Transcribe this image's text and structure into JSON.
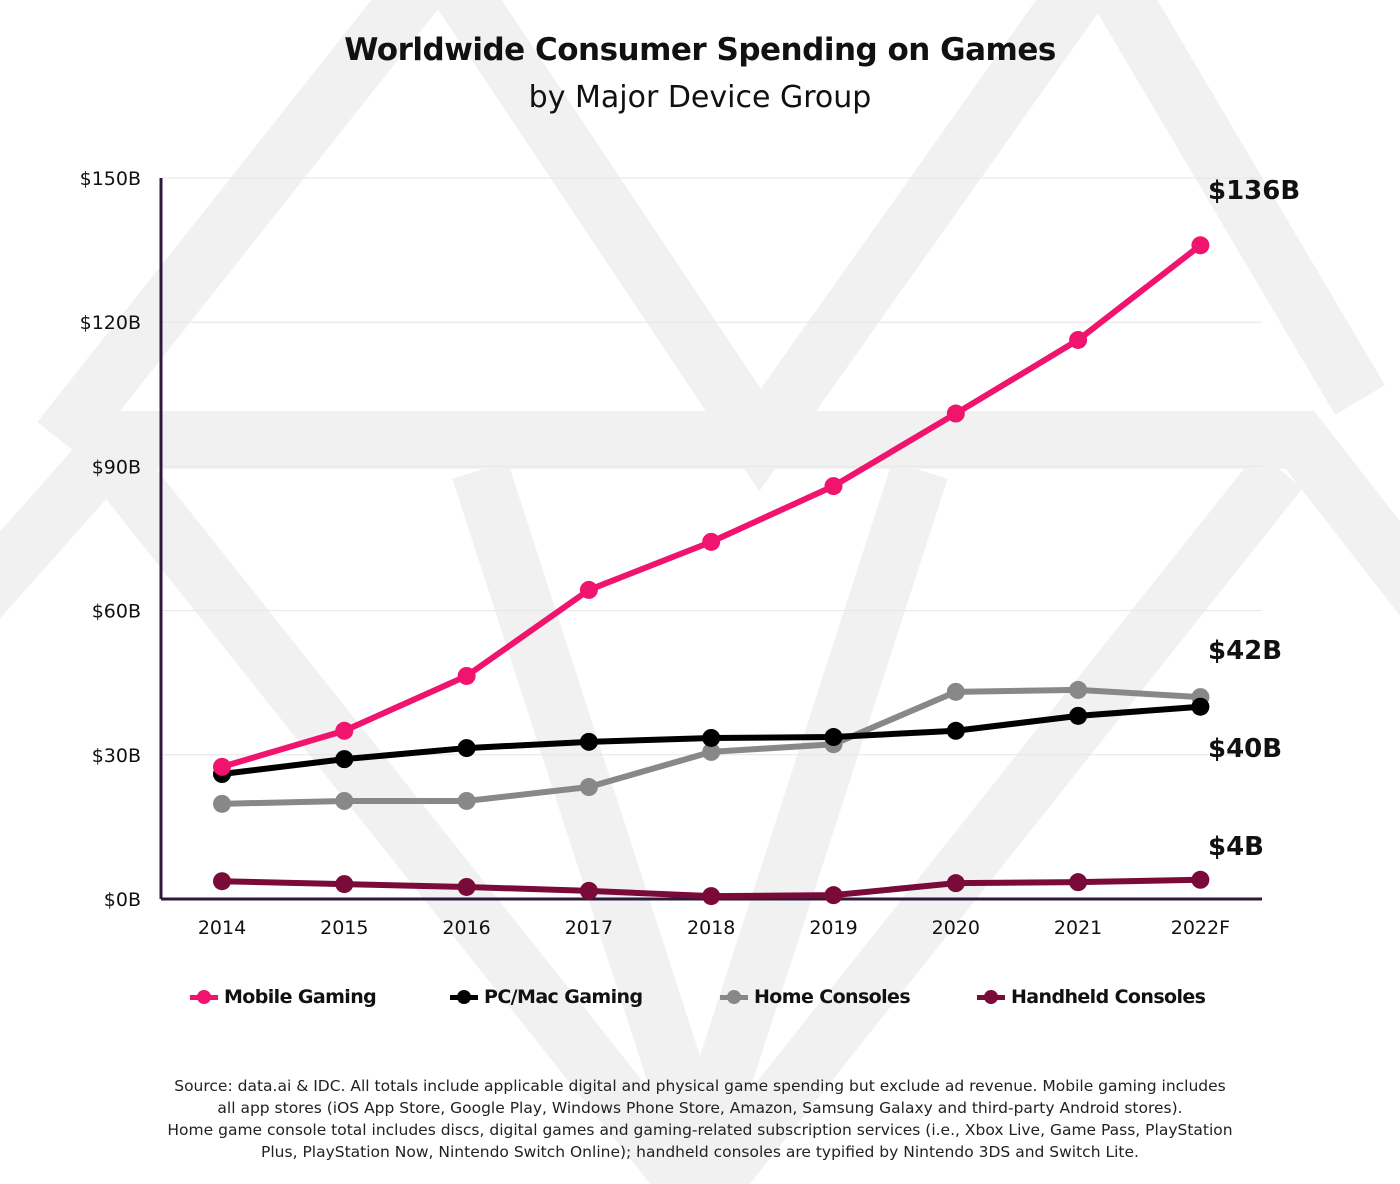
{
  "header": {
    "title": "Worldwide Consumer Spending on Games",
    "subtitle": "by Major Device Group"
  },
  "colors": {
    "mobile": "#f0146e",
    "pc": "#000000",
    "home": "#888888",
    "handheld": "#7a0a38",
    "axis": "#2c1a3c",
    "grid": "#e6e6e6",
    "watermark": "#f0f0f0"
  },
  "chart_data": {
    "type": "line",
    "title": "Worldwide Consumer Spending on Games",
    "subtitle": "by Major Device Group",
    "xlabel": "",
    "ylabel": "",
    "categories": [
      "2014",
      "2015",
      "2016",
      "2017",
      "2018",
      "2019",
      "2020",
      "2021",
      "2022F"
    ],
    "ylim": [
      0,
      150
    ],
    "yticks": [
      0,
      30,
      60,
      90,
      120,
      150
    ],
    "ytick_labels": [
      "$0B",
      "$30B",
      "$60B",
      "$90B",
      "$120B",
      "$150B"
    ],
    "grid": true,
    "legend_position": "bottom",
    "series": [
      {
        "key": "mobile",
        "name": "Mobile Gaming",
        "values": [
          27.5,
          35,
          46.4,
          64.3,
          74.3,
          85.9,
          101,
          116.3,
          136
        ],
        "end_label": "$136B"
      },
      {
        "key": "pc",
        "name": "PC/Mac Gaming",
        "values": [
          26,
          29.1,
          31.4,
          32.7,
          33.5,
          33.7,
          35,
          38.1,
          40
        ],
        "end_label": "$40B"
      },
      {
        "key": "home",
        "name": "Home Consoles",
        "values": [
          19.8,
          20.4,
          20.4,
          23.3,
          30.6,
          32.2,
          43.1,
          43.5,
          42
        ],
        "end_label": "$42B"
      },
      {
        "key": "handheld",
        "name": "Handheld Consoles",
        "values": [
          3.7,
          3.1,
          2.5,
          1.7,
          0.6,
          0.8,
          3.3,
          3.5,
          4
        ],
        "end_label": "$4B"
      }
    ]
  },
  "legend": [
    {
      "key": "mobile",
      "label": "Mobile Gaming"
    },
    {
      "key": "pc",
      "label": "PC/Mac Gaming"
    },
    {
      "key": "home",
      "label": "Home Consoles"
    },
    {
      "key": "handheld",
      "label": "Handheld Consoles"
    }
  ],
  "footer": {
    "source_lines": [
      "Source: data.ai & IDC. All totals include applicable digital and physical game spending but exclude ad revenue. Mobile gaming includes",
      "all app stores (iOS App Store, Google Play, Windows Phone Store, Amazon, Samsung Galaxy and third-party Android stores).",
      "Home game console total includes discs, digital games and gaming-related subscription services (i.e., Xbox Live, Game Pass, PlayStation",
      "Plus, PlayStation Now, Nintendo Switch Online); handheld consoles are typified by Nintendo 3DS and Switch Lite."
    ]
  }
}
